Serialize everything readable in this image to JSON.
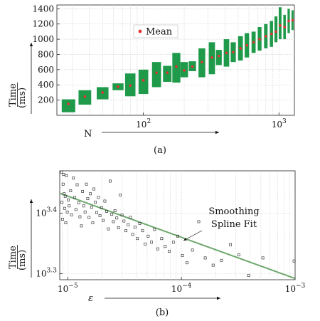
{
  "chart_data": [
    {
      "type": "bar",
      "caption": "(a)",
      "xlabel": "N",
      "ylabel": "Time",
      "ylabel_unit": "(ms)",
      "xscale": "log",
      "xlim": [
        23,
        1300
      ],
      "ylim": [
        0,
        1450
      ],
      "x_ticks": [
        {
          "value": 100,
          "base": "10",
          "exp": "2"
        },
        {
          "value": 1000,
          "base": "10",
          "exp": "3"
        }
      ],
      "y_ticks": [
        200,
        400,
        600,
        800,
        1000,
        1200,
        1400
      ],
      "grid": true,
      "legend": {
        "placement": "top-center",
        "entries": [
          "Mean"
        ]
      },
      "colors": {
        "range": "#1e9a4a",
        "mean": "#e53030"
      },
      "series": [
        {
          "name": "Mean",
          "points": [
            {
              "x": 28,
              "mean": 150,
              "low": 40,
              "high": 210
            },
            {
              "x": 37,
              "mean": 245,
              "low": 140,
              "high": 330
            },
            {
              "x": 50,
              "mean": 300,
              "low": 210,
              "high": 370
            },
            {
              "x": 65,
              "mean": 375,
              "low": 330,
              "high": 420
            },
            {
              "x": 80,
              "mean": 390,
              "low": 250,
              "high": 550
            },
            {
              "x": 100,
              "mean": 460,
              "low": 280,
              "high": 600
            },
            {
              "x": 125,
              "mean": 560,
              "low": 370,
              "high": 700
            },
            {
              "x": 150,
              "mean": 560,
              "low": 440,
              "high": 650
            },
            {
              "x": 175,
              "mean": 640,
              "low": 430,
              "high": 820
            },
            {
              "x": 200,
              "mean": 590,
              "low": 500,
              "high": 700
            },
            {
              "x": 230,
              "mean": 640,
              "low": 580,
              "high": 710
            },
            {
              "x": 270,
              "mean": 700,
              "low": 500,
              "high": 880
            },
            {
              "x": 320,
              "mean": 760,
              "low": 540,
              "high": 960
            },
            {
              "x": 360,
              "mean": 780,
              "low": 660,
              "high": 860
            },
            {
              "x": 410,
              "mean": 820,
              "low": 640,
              "high": 1000
            },
            {
              "x": 460,
              "mean": 830,
              "low": 700,
              "high": 960
            },
            {
              "x": 520,
              "mean": 880,
              "low": 720,
              "high": 1040
            },
            {
              "x": 580,
              "mean": 920,
              "low": 760,
              "high": 1080
            },
            {
              "x": 650,
              "mean": 960,
              "low": 820,
              "high": 1100
            },
            {
              "x": 720,
              "mean": 1000,
              "low": 850,
              "high": 1160
            },
            {
              "x": 800,
              "mean": 1040,
              "low": 880,
              "high": 1200
            },
            {
              "x": 880,
              "mean": 1070,
              "low": 900,
              "high": 1240
            },
            {
              "x": 950,
              "mean": 1100,
              "low": 960,
              "high": 1300
            },
            {
              "x": 1020,
              "mean": 1180,
              "low": 1000,
              "high": 1420
            },
            {
              "x": 1100,
              "mean": 1160,
              "low": 1000,
              "high": 1320
            },
            {
              "x": 1180,
              "mean": 1240,
              "low": 1080,
              "high": 1400
            },
            {
              "x": 1260,
              "mean": 1250,
              "low": 1120,
              "high": 1380
            }
          ]
        }
      ]
    },
    {
      "type": "scatter",
      "caption": "(b)",
      "xlabel": "ε",
      "ylabel": "Time",
      "ylabel_unit": "(ms)",
      "xscale": "log",
      "yscale": "log",
      "xlim": [
        8.5e-06,
        0.001
      ],
      "ylim": [
        3.29,
        3.47
      ],
      "x_ticks": [
        {
          "value": 1e-05,
          "base": "10",
          "exp": "−5"
        },
        {
          "value": 0.0001,
          "base": "10",
          "exp": "−4"
        },
        {
          "value": 0.001,
          "base": "10",
          "exp": "−3"
        }
      ],
      "y_ticks": [
        {
          "value": 3.3,
          "base": "10",
          "exp": "3.3"
        },
        {
          "value": 3.4,
          "base": "10",
          "exp": "3.4"
        }
      ],
      "grid": true,
      "annotation": {
        "lines": [
          "Smoothing",
          "Spline Fit"
        ]
      },
      "colors": {
        "points": "#222222",
        "fit": "#6ea86e"
      },
      "fit_line": {
        "x": [
          8.5e-06,
          0.001
        ],
        "log10_y": [
          3.433,
          3.292
        ]
      },
      "points_log10": [
        {
          "x": 8.8e-06,
          "y": 3.468
        },
        {
          "x": 9.2e-06,
          "y": 3.464
        },
        {
          "x": 9.7e-06,
          "y": 3.462
        },
        {
          "x": 9.1e-06,
          "y": 3.448
        },
        {
          "x": 9.3e-06,
          "y": 3.432
        },
        {
          "x": 9.5e-06,
          "y": 3.428
        },
        {
          "x": 8.9e-06,
          "y": 3.418
        },
        {
          "x": 9.4e-06,
          "y": 3.408
        },
        {
          "x": 9.9e-06,
          "y": 3.402
        },
        {
          "x": 9e-06,
          "y": 3.39
        },
        {
          "x": 9.6e-06,
          "y": 3.384
        },
        {
          "x": 1.01e-05,
          "y": 3.422
        },
        {
          "x": 1.03e-05,
          "y": 3.412
        },
        {
          "x": 1.06e-05,
          "y": 3.437
        },
        {
          "x": 1.08e-05,
          "y": 3.397
        },
        {
          "x": 1.12e-05,
          "y": 3.458
        },
        {
          "x": 1.15e-05,
          "y": 3.426
        },
        {
          "x": 1.18e-05,
          "y": 3.406
        },
        {
          "x": 1.21e-05,
          "y": 3.447
        },
        {
          "x": 1.25e-05,
          "y": 3.417
        },
        {
          "x": 1.28e-05,
          "y": 3.394
        },
        {
          "x": 1.32e-05,
          "y": 3.379
        },
        {
          "x": 1.35e-05,
          "y": 3.436
        },
        {
          "x": 1.38e-05,
          "y": 3.412
        },
        {
          "x": 1.42e-05,
          "y": 3.402
        },
        {
          "x": 1.46e-05,
          "y": 3.448
        },
        {
          "x": 1.5e-05,
          "y": 3.424
        },
        {
          "x": 1.54e-05,
          "y": 3.393
        },
        {
          "x": 1.58e-05,
          "y": 3.432
        },
        {
          "x": 1.62e-05,
          "y": 3.41
        },
        {
          "x": 1.66e-05,
          "y": 3.384
        },
        {
          "x": 1.7e-05,
          "y": 3.44
        },
        {
          "x": 1.75e-05,
          "y": 3.418
        },
        {
          "x": 1.8e-05,
          "y": 3.401
        },
        {
          "x": 1.86e-05,
          "y": 3.426
        },
        {
          "x": 1.92e-05,
          "y": 3.396
        },
        {
          "x": 1.98e-05,
          "y": 3.409
        },
        {
          "x": 2.05e-05,
          "y": 3.388
        },
        {
          "x": 2.12e-05,
          "y": 3.42
        },
        {
          "x": 2.2e-05,
          "y": 3.403
        },
        {
          "x": 2.28e-05,
          "y": 3.374
        },
        {
          "x": 2.36e-05,
          "y": 3.453
        },
        {
          "x": 2.44e-05,
          "y": 3.398
        },
        {
          "x": 2.52e-05,
          "y": 3.386
        },
        {
          "x": 2.6e-05,
          "y": 3.404
        },
        {
          "x": 2.7e-05,
          "y": 3.392
        },
        {
          "x": 2.8e-05,
          "y": 3.376
        },
        {
          "x": 2.9e-05,
          "y": 3.43
        },
        {
          "x": 3e-05,
          "y": 3.397
        },
        {
          "x": 3.12e-05,
          "y": 3.387
        },
        {
          "x": 3.25e-05,
          "y": 3.371
        },
        {
          "x": 3.4e-05,
          "y": 3.381
        },
        {
          "x": 3.55e-05,
          "y": 3.393
        },
        {
          "x": 3.72e-05,
          "y": 3.365
        },
        {
          "x": 3.9e-05,
          "y": 3.377
        },
        {
          "x": 4.1e-05,
          "y": 3.358
        },
        {
          "x": 4.3e-05,
          "y": 3.383
        },
        {
          "x": 4.55e-05,
          "y": 3.371
        },
        {
          "x": 4.8e-05,
          "y": 3.349
        },
        {
          "x": 5.1e-05,
          "y": 3.362
        },
        {
          "x": 5.45e-05,
          "y": 3.352
        },
        {
          "x": 5.8e-05,
          "y": 3.373
        },
        {
          "x": 6.2e-05,
          "y": 3.341
        },
        {
          "x": 6.7e-05,
          "y": 3.358
        },
        {
          "x": 7.2e-05,
          "y": 3.345
        },
        {
          "x": 7.8e-05,
          "y": 3.337
        },
        {
          "x": 8.5e-05,
          "y": 3.352
        },
        {
          "x": 9.3e-05,
          "y": 3.362
        },
        {
          "x": 0.000102,
          "y": 3.33
        },
        {
          "x": 0.000112,
          "y": 3.318
        },
        {
          "x": 0.000125,
          "y": 3.339
        },
        {
          "x": 0.000142,
          "y": 3.386
        },
        {
          "x": 0.000162,
          "y": 3.326
        },
        {
          "x": 0.00019,
          "y": 3.314
        },
        {
          "x": 0.000225,
          "y": 3.322
        },
        {
          "x": 0.00027,
          "y": 3.348
        },
        {
          "x": 0.00032,
          "y": 3.331
        },
        {
          "x": 0.00039,
          "y": 3.297
        },
        {
          "x": 0.00052,
          "y": 3.326
        },
        {
          "x": 0.00098,
          "y": 3.321
        }
      ]
    }
  ]
}
